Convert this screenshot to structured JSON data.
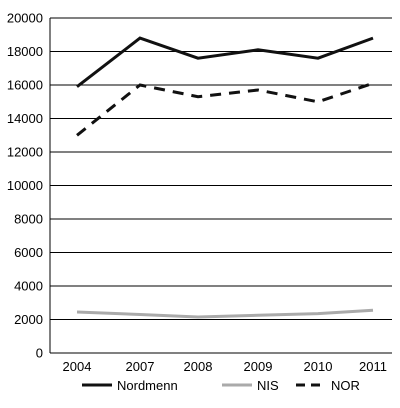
{
  "chart_data": {
    "type": "line",
    "title": "",
    "xlabel": "",
    "ylabel": "",
    "categories": [
      "2004",
      "2007",
      "2008",
      "2009",
      "2010",
      "2011"
    ],
    "ylim": [
      0,
      20000
    ],
    "yticks": [
      0,
      2000,
      4000,
      6000,
      8000,
      10000,
      12000,
      14000,
      16000,
      18000,
      20000
    ],
    "grid": "horizontal",
    "legend_position": "bottom",
    "series": [
      {
        "name": "Nordmenn",
        "values": [
          15900,
          18800,
          17600,
          18100,
          17600,
          18800
        ],
        "color": "#111111",
        "style": "solid"
      },
      {
        "name": "NIS",
        "values": [
          2450,
          2300,
          2150,
          2250,
          2350,
          2550
        ],
        "color": "#aaaaaa",
        "style": "solid"
      },
      {
        "name": "NOR",
        "values": [
          13000,
          16000,
          15300,
          15700,
          15000,
          16100
        ],
        "color": "#111111",
        "style": "dashed"
      }
    ]
  }
}
